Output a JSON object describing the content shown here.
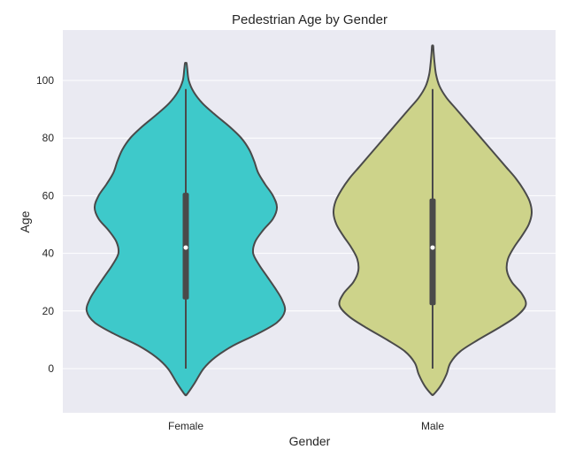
{
  "chart_data": {
    "type": "violin",
    "title": "Pedestrian Age by Gender",
    "xlabel": "Gender",
    "ylabel": "Age",
    "categories": [
      "Female",
      "Male"
    ],
    "yticks": [
      0,
      20,
      40,
      60,
      80,
      100
    ],
    "ylim": [
      -15,
      117
    ],
    "grid": true,
    "background_color": "#eaeaf2",
    "violins": [
      {
        "name": "Female",
        "color": "#3ec9ca",
        "range": [
          -9,
          106
        ],
        "median": 42,
        "q1": 24,
        "q3": 61,
        "whisker_low": 0,
        "whisker_high": 97,
        "density": [
          [
            -9,
            0.01
          ],
          [
            -5,
            0.09
          ],
          [
            0,
            0.18
          ],
          [
            4,
            0.3
          ],
          [
            8,
            0.48
          ],
          [
            12,
            0.72
          ],
          [
            16,
            0.92
          ],
          [
            20,
            1.0
          ],
          [
            24,
            0.97
          ],
          [
            28,
            0.9
          ],
          [
            32,
            0.82
          ],
          [
            36,
            0.74
          ],
          [
            40,
            0.68
          ],
          [
            44,
            0.7
          ],
          [
            48,
            0.78
          ],
          [
            52,
            0.88
          ],
          [
            56,
            0.92
          ],
          [
            60,
            0.88
          ],
          [
            64,
            0.8
          ],
          [
            68,
            0.73
          ],
          [
            72,
            0.69
          ],
          [
            76,
            0.64
          ],
          [
            80,
            0.56
          ],
          [
            84,
            0.44
          ],
          [
            88,
            0.3
          ],
          [
            92,
            0.17
          ],
          [
            96,
            0.08
          ],
          [
            100,
            0.03
          ],
          [
            104,
            0.015
          ],
          [
            106,
            0.008
          ]
        ]
      },
      {
        "name": "Male",
        "color": "#cdd38a",
        "range": [
          -9,
          112
        ],
        "median": 42,
        "q1": 22,
        "q3": 59,
        "whisker_low": 0,
        "whisker_high": 97,
        "density": [
          [
            -9,
            0.01
          ],
          [
            -6,
            0.08
          ],
          [
            -2,
            0.14
          ],
          [
            2,
            0.18
          ],
          [
            6,
            0.28
          ],
          [
            10,
            0.46
          ],
          [
            14,
            0.66
          ],
          [
            18,
            0.84
          ],
          [
            22,
            0.94
          ],
          [
            26,
            0.9
          ],
          [
            30,
            0.8
          ],
          [
            34,
            0.75
          ],
          [
            38,
            0.76
          ],
          [
            42,
            0.82
          ],
          [
            46,
            0.9
          ],
          [
            50,
            0.97
          ],
          [
            54,
            1.0
          ],
          [
            58,
            0.98
          ],
          [
            62,
            0.92
          ],
          [
            66,
            0.84
          ],
          [
            70,
            0.74
          ],
          [
            74,
            0.64
          ],
          [
            78,
            0.54
          ],
          [
            82,
            0.44
          ],
          [
            86,
            0.34
          ],
          [
            90,
            0.24
          ],
          [
            94,
            0.14
          ],
          [
            98,
            0.07
          ],
          [
            102,
            0.035
          ],
          [
            106,
            0.02
          ],
          [
            110,
            0.01
          ],
          [
            112,
            0.006
          ]
        ]
      }
    ]
  }
}
